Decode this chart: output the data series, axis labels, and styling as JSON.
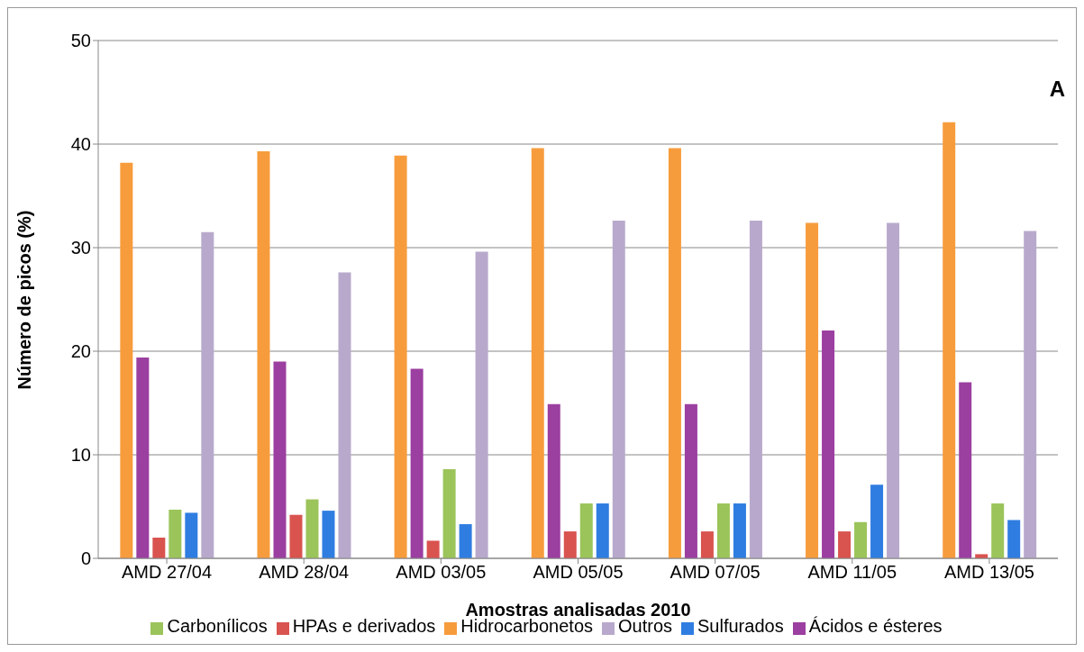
{
  "chart_data": {
    "type": "bar",
    "xlabel": "Amostras analisadas 2010",
    "ylabel": "Número de picos (%)",
    "annotations": [
      "A"
    ],
    "categories": [
      "AMD 27/04",
      "AMD 28/04",
      "AMD 03/05",
      "AMD 05/05",
      "AMD 07/05",
      "AMD 11/05",
      "AMD 13/05"
    ],
    "series": [
      {
        "name": "Hidrocarbonetos",
        "color": "#f79c3c",
        "values": [
          38.2,
          39.3,
          38.9,
          39.6,
          39.6,
          32.4,
          42.1
        ]
      },
      {
        "name": "Ácidos e ésteres",
        "color": "#9b3fa0",
        "values": [
          19.4,
          19.0,
          18.3,
          14.9,
          14.9,
          22.0,
          17.0
        ]
      },
      {
        "name": "HPAs e derivados",
        "color": "#d9534f",
        "values": [
          2.0,
          4.2,
          1.7,
          2.6,
          2.6,
          2.6,
          0.4
        ]
      },
      {
        "name": "Carbonílicos",
        "color": "#9bc45a",
        "values": [
          4.7,
          5.7,
          8.6,
          5.3,
          5.3,
          3.5,
          5.3
        ]
      },
      {
        "name": "Sulfurados",
        "color": "#2f7de1",
        "values": [
          4.4,
          4.6,
          3.3,
          5.3,
          5.3,
          7.1,
          3.7
        ]
      },
      {
        "name": "Outros",
        "color": "#b8a9cc",
        "values": [
          31.5,
          27.6,
          29.6,
          32.6,
          32.6,
          32.4,
          31.6
        ]
      }
    ],
    "ylim": [
      0,
      50
    ],
    "yticks": [
      0,
      10,
      20,
      30,
      40,
      50
    ],
    "grid": "y",
    "legend": "bottom"
  }
}
